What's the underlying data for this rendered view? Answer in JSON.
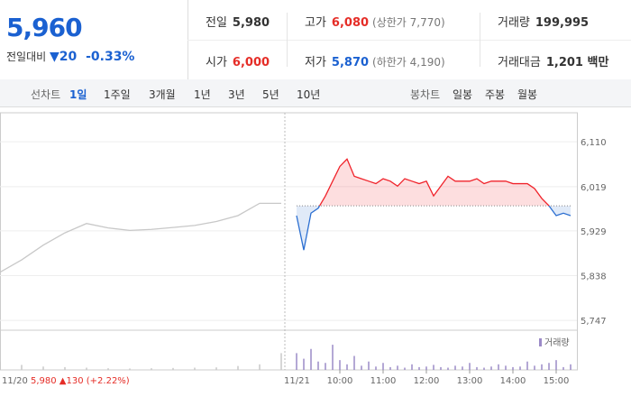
{
  "header": {
    "price": "5,960",
    "change_label": "전일대비",
    "change": "▼20",
    "rate": "-0.33%",
    "stats": [
      {
        "label": "전일",
        "value": "5,980"
      },
      {
        "label": "고가",
        "value": "6,080",
        "note": "(상한가 7,770)"
      },
      {
        "label": "거래량",
        "value": "199,995"
      },
      {
        "label": "시가",
        "value": "6,000"
      },
      {
        "label": "저가",
        "value": "5,870",
        "note": "(하한가 4,190)"
      },
      {
        "label": "거래대금",
        "value": "1,201 백만"
      }
    ]
  },
  "tabs": {
    "line_label": "선차트",
    "line_tabs": [
      "1일",
      "1주일",
      "3개월",
      "1년",
      "3년",
      "5년",
      "10년"
    ],
    "candle_label": "봉차트",
    "candle_tabs": [
      "일봉",
      "주봉",
      "월봉"
    ]
  },
  "chart_data": {
    "type": "line",
    "baseline": 5980,
    "up_color": "#f0232b",
    "down_color": "#2c6fd1",
    "ylim": [
      5729,
      6169
    ],
    "yticks": [
      {
        "value": 6110,
        "label": "6,110"
      },
      {
        "value": 6019,
        "label": "6,019"
      },
      {
        "value": 5929,
        "label": "5,929"
      },
      {
        "value": 5838,
        "label": "5,838"
      },
      {
        "value": 5747,
        "label": "5,747"
      }
    ],
    "xticks": [
      "10:00",
      "11:00",
      "12:00",
      "13:00",
      "14:00",
      "15:00"
    ],
    "volume_label": "거래량",
    "volume_color": "#9b8ac7",
    "volume_ylim": [
      0,
      100
    ],
    "summary": "5,980 ▲130 (+2.22%)",
    "days": [
      {
        "date": "11/20",
        "color": "#c8c8c8",
        "x": [
          "09:00",
          "09:30",
          "10:00",
          "10:30",
          "11:00",
          "11:30",
          "12:00",
          "12:30",
          "13:00",
          "13:30",
          "14:00",
          "14:30",
          "15:00",
          "15:30"
        ],
        "values": [
          5845,
          5870,
          5900,
          5925,
          5944,
          5935,
          5930,
          5932,
          5936,
          5940,
          5948,
          5960,
          5985,
          5985
        ],
        "volume": [
          30,
          18,
          12,
          10,
          8,
          6,
          5,
          6,
          7,
          8,
          9,
          14,
          20,
          60
        ]
      },
      {
        "date": "11/21",
        "x": [
          "09:00",
          "09:10",
          "09:20",
          "09:30",
          "09:40",
          "09:50",
          "10:00",
          "10:10",
          "10:20",
          "10:30",
          "10:40",
          "10:50",
          "11:00",
          "11:10",
          "11:20",
          "11:30",
          "11:40",
          "11:50",
          "12:00",
          "12:10",
          "12:20",
          "12:30",
          "12:40",
          "12:50",
          "13:00",
          "13:10",
          "13:20",
          "13:30",
          "13:40",
          "13:50",
          "14:00",
          "14:10",
          "14:20",
          "14:30",
          "14:40",
          "14:50",
          "15:00",
          "15:10",
          "15:20"
        ],
        "values": [
          5960,
          5890,
          5965,
          5975,
          6000,
          6030,
          6060,
          6075,
          6040,
          6035,
          6030,
          6025,
          6035,
          6030,
          6020,
          6035,
          6030,
          6025,
          6030,
          6000,
          6020,
          6040,
          6030,
          6030,
          6030,
          6035,
          6025,
          6030,
          6030,
          6030,
          6025,
          6025,
          6025,
          6015,
          5995,
          5980,
          5960,
          5965,
          5960
        ],
        "volume": [
          60,
          40,
          75,
          30,
          25,
          90,
          35,
          20,
          50,
          15,
          30,
          12,
          25,
          10,
          15,
          8,
          20,
          10,
          12,
          18,
          10,
          8,
          15,
          12,
          25,
          10,
          8,
          12,
          20,
          15,
          10,
          12,
          30,
          15,
          20,
          25,
          35,
          10,
          20
        ]
      }
    ]
  }
}
